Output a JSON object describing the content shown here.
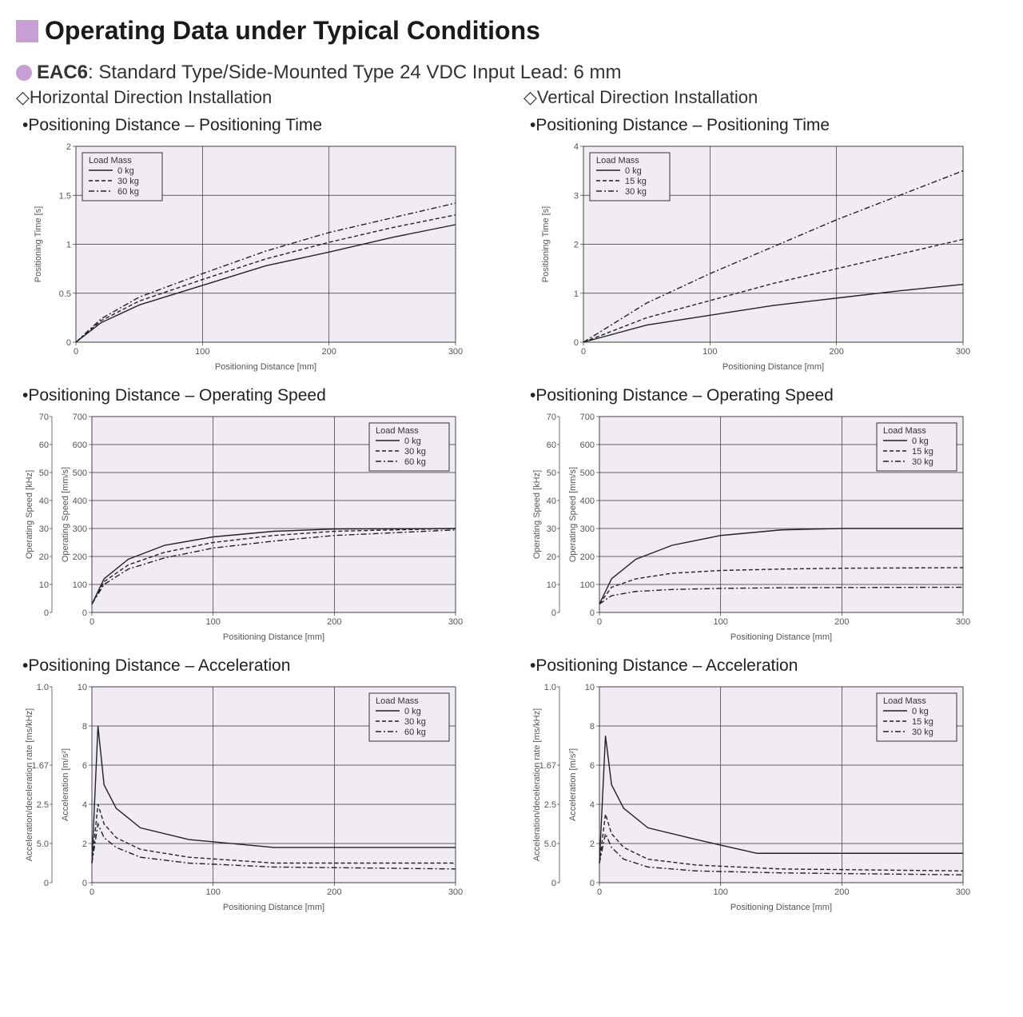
{
  "page_title": "Operating Data under Typical Conditions",
  "product_line": "EAC6",
  "product_desc": ": Standard Type/Side-Mounted Type  24 VDC Input  Lead: 6 mm",
  "columns": {
    "left": {
      "heading": "Horizontal Direction Installation",
      "legend_masses": [
        "0 kg",
        "30 kg",
        "60 kg"
      ]
    },
    "right": {
      "heading": "Vertical Direction Installation",
      "legend_masses": [
        "0 kg",
        "15 kg",
        "30 kg"
      ]
    }
  },
  "chart_titles": {
    "pt": "Positioning Distance – Positioning Time",
    "os": "Positioning Distance – Operating Speed",
    "ac": "Positioning Distance – Acceleration"
  },
  "common": {
    "xlabel": "Positioning Distance [mm]",
    "xticks": [
      0,
      100,
      200,
      300
    ],
    "xlim": [
      0,
      300
    ],
    "legend_title": "Load Mass",
    "line_styles": [
      "solid",
      "dash",
      "dashdot"
    ],
    "background_color": "#f1ebf4",
    "grid_color": "#333333",
    "line_color": "#222222"
  },
  "charts": {
    "h_pt": {
      "ylabel": "Positioning Time [s]",
      "ylim": [
        0,
        2.0
      ],
      "yticks": [
        0,
        0.5,
        1.0,
        1.5,
        2.0
      ],
      "legend_pos": "top-left",
      "extra_left_axis": null,
      "series": [
        {
          "name": "0kg",
          "pts": [
            [
              0,
              0
            ],
            [
              20,
              0.2
            ],
            [
              50,
              0.38
            ],
            [
              100,
              0.58
            ],
            [
              150,
              0.78
            ],
            [
              200,
              0.92
            ],
            [
              250,
              1.07
            ],
            [
              300,
              1.2
            ]
          ]
        },
        {
          "name": "30kg",
          "pts": [
            [
              0,
              0
            ],
            [
              20,
              0.22
            ],
            [
              50,
              0.42
            ],
            [
              100,
              0.64
            ],
            [
              150,
              0.85
            ],
            [
              200,
              1.02
            ],
            [
              250,
              1.17
            ],
            [
              300,
              1.3
            ]
          ]
        },
        {
          "name": "60kg",
          "pts": [
            [
              0,
              0
            ],
            [
              20,
              0.24
            ],
            [
              50,
              0.46
            ],
            [
              100,
              0.7
            ],
            [
              150,
              0.93
            ],
            [
              200,
              1.12
            ],
            [
              250,
              1.27
            ],
            [
              300,
              1.42
            ]
          ]
        }
      ]
    },
    "h_os": {
      "ylabel": "Operating Speed [mm/s]",
      "ylim": [
        0,
        700
      ],
      "yticks": [
        0,
        100,
        200,
        300,
        400,
        500,
        600,
        700
      ],
      "legend_pos": "top-right",
      "extra_left_axis": {
        "label": "Operating Speed [kHz]",
        "ticks": [
          0,
          10,
          20,
          30,
          40,
          50,
          60,
          70
        ]
      },
      "series": [
        {
          "name": "0kg",
          "pts": [
            [
              0,
              30
            ],
            [
              10,
              120
            ],
            [
              30,
              190
            ],
            [
              60,
              240
            ],
            [
              100,
              270
            ],
            [
              150,
              290
            ],
            [
              200,
              298
            ],
            [
              300,
              300
            ]
          ]
        },
        {
          "name": "30kg",
          "pts": [
            [
              0,
              30
            ],
            [
              10,
              110
            ],
            [
              30,
              170
            ],
            [
              60,
              215
            ],
            [
              100,
              250
            ],
            [
              150,
              275
            ],
            [
              200,
              290
            ],
            [
              300,
              300
            ]
          ]
        },
        {
          "name": "60kg",
          "pts": [
            [
              0,
              30
            ],
            [
              10,
              100
            ],
            [
              30,
              155
            ],
            [
              60,
              195
            ],
            [
              100,
              230
            ],
            [
              150,
              255
            ],
            [
              200,
              275
            ],
            [
              300,
              295
            ]
          ]
        }
      ]
    },
    "h_ac": {
      "ylabel": "Acceleration [m/s²]",
      "ylim": [
        0,
        10
      ],
      "yticks": [
        0,
        2,
        4,
        6,
        8,
        10
      ],
      "legend_pos": "top-right",
      "extra_left_axis": {
        "label": "Acceleration/deceleration rate [ms/kHz]",
        "ticks": [
          0,
          "5.0",
          "2.5",
          "1.67",
          "1.0"
        ],
        "positions": [
          0,
          2,
          4,
          6,
          10
        ]
      },
      "series": [
        {
          "name": "0kg",
          "pts": [
            [
              0,
              1
            ],
            [
              5,
              8.0
            ],
            [
              10,
              5.0
            ],
            [
              20,
              3.8
            ],
            [
              40,
              2.8
            ],
            [
              80,
              2.2
            ],
            [
              150,
              1.8
            ],
            [
              300,
              1.8
            ]
          ]
        },
        {
          "name": "30kg",
          "pts": [
            [
              0,
              1
            ],
            [
              5,
              4.0
            ],
            [
              10,
              3.0
            ],
            [
              20,
              2.3
            ],
            [
              40,
              1.7
            ],
            [
              80,
              1.3
            ],
            [
              150,
              1.0
            ],
            [
              300,
              1.0
            ]
          ]
        },
        {
          "name": "60kg",
          "pts": [
            [
              0,
              1
            ],
            [
              5,
              3.0
            ],
            [
              10,
              2.3
            ],
            [
              20,
              1.8
            ],
            [
              40,
              1.3
            ],
            [
              80,
              1.0
            ],
            [
              150,
              0.8
            ],
            [
              300,
              0.7
            ]
          ]
        }
      ]
    },
    "v_pt": {
      "ylabel": "Positioning Time [s]",
      "ylim": [
        0,
        4.0
      ],
      "yticks": [
        0,
        1.0,
        2.0,
        3.0,
        4.0
      ],
      "legend_pos": "top-left",
      "extra_left_axis": null,
      "series": [
        {
          "name": "0kg",
          "pts": [
            [
              0,
              0
            ],
            [
              50,
              0.35
            ],
            [
              100,
              0.55
            ],
            [
              150,
              0.75
            ],
            [
              200,
              0.9
            ],
            [
              250,
              1.05
            ],
            [
              300,
              1.18
            ]
          ]
        },
        {
          "name": "15kg",
          "pts": [
            [
              0,
              0
            ],
            [
              50,
              0.5
            ],
            [
              100,
              0.85
            ],
            [
              150,
              1.2
            ],
            [
              200,
              1.5
            ],
            [
              250,
              1.8
            ],
            [
              300,
              2.1
            ]
          ]
        },
        {
          "name": "30kg",
          "pts": [
            [
              0,
              0
            ],
            [
              50,
              0.8
            ],
            [
              100,
              1.4
            ],
            [
              150,
              1.95
            ],
            [
              200,
              2.5
            ],
            [
              250,
              3.0
            ],
            [
              300,
              3.5
            ]
          ]
        }
      ]
    },
    "v_os": {
      "ylabel": "Operating Speed [mm/s]",
      "ylim": [
        0,
        700
      ],
      "yticks": [
        0,
        100,
        200,
        300,
        400,
        500,
        600,
        700
      ],
      "legend_pos": "top-right",
      "extra_left_axis": {
        "label": "Operating Speed [kHz]",
        "ticks": [
          0,
          10,
          20,
          30,
          40,
          50,
          60,
          70
        ]
      },
      "series": [
        {
          "name": "0kg",
          "pts": [
            [
              0,
              30
            ],
            [
              10,
              120
            ],
            [
              30,
              190
            ],
            [
              60,
              240
            ],
            [
              100,
              275
            ],
            [
              150,
              295
            ],
            [
              200,
              300
            ],
            [
              300,
              300
            ]
          ]
        },
        {
          "name": "15kg",
          "pts": [
            [
              0,
              30
            ],
            [
              10,
              90
            ],
            [
              30,
              120
            ],
            [
              60,
              140
            ],
            [
              100,
              150
            ],
            [
              150,
              155
            ],
            [
              200,
              158
            ],
            [
              300,
              160
            ]
          ]
        },
        {
          "name": "30kg",
          "pts": [
            [
              0,
              30
            ],
            [
              10,
              60
            ],
            [
              30,
              75
            ],
            [
              60,
              82
            ],
            [
              100,
              86
            ],
            [
              150,
              88
            ],
            [
              200,
              89
            ],
            [
              300,
              90
            ]
          ]
        }
      ]
    },
    "v_ac": {
      "ylabel": "Acceleration [m/s²]",
      "ylim": [
        0,
        10
      ],
      "yticks": [
        0,
        2,
        4,
        6,
        8,
        10
      ],
      "legend_pos": "top-right",
      "extra_left_axis": {
        "label": "Acceleration/deceleration rate [ms/kHz]",
        "ticks": [
          0,
          "5.0",
          "2.5",
          "1.67",
          "1.0"
        ],
        "positions": [
          0,
          2,
          4,
          6,
          10
        ]
      },
      "series": [
        {
          "name": "0kg",
          "pts": [
            [
              0,
              1
            ],
            [
              5,
              7.5
            ],
            [
              10,
              5.0
            ],
            [
              20,
              3.8
            ],
            [
              40,
              2.8
            ],
            [
              80,
              2.2
            ],
            [
              130,
              1.5
            ],
            [
              300,
              1.5
            ]
          ]
        },
        {
          "name": "15kg",
          "pts": [
            [
              0,
              1
            ],
            [
              5,
              3.5
            ],
            [
              10,
              2.5
            ],
            [
              20,
              1.8
            ],
            [
              40,
              1.2
            ],
            [
              80,
              0.9
            ],
            [
              150,
              0.7
            ],
            [
              300,
              0.6
            ]
          ]
        },
        {
          "name": "30kg",
          "pts": [
            [
              0,
              1
            ],
            [
              5,
              2.5
            ],
            [
              10,
              1.8
            ],
            [
              20,
              1.2
            ],
            [
              40,
              0.8
            ],
            [
              80,
              0.6
            ],
            [
              150,
              0.5
            ],
            [
              300,
              0.4
            ]
          ]
        }
      ]
    }
  }
}
